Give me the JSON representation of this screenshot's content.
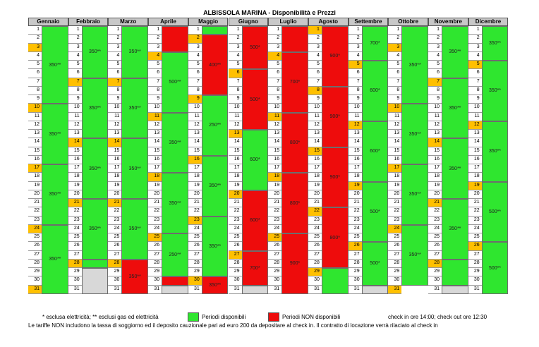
{
  "title": "ALBISSOLA MARINA - Disponibilità e Prezzi",
  "colors": {
    "available": "#2fe62f",
    "unavailable": "#ee0c0c",
    "weekend": "#ffc000",
    "header": "#c8c8c8",
    "empty": "#d8d8d8"
  },
  "months": [
    {
      "name": "Gennaio",
      "days": 31,
      "highlights": [
        3,
        10,
        17,
        24,
        31
      ],
      "blocks": [
        {
          "from": 1,
          "to": 9,
          "label": "350**",
          "status": "available"
        },
        {
          "from": 10,
          "to": 16,
          "label": "350**",
          "status": "available"
        },
        {
          "from": 17,
          "to": 23,
          "label": "350**",
          "status": "available"
        },
        {
          "from": 24,
          "to": 31,
          "label": "350**",
          "status": "available"
        }
      ]
    },
    {
      "name": "Febbraio",
      "days": 28,
      "highlights": [
        7,
        14,
        21,
        28
      ],
      "blocks": [
        {
          "from": 1,
          "to": 6,
          "label": "350**",
          "status": "available"
        },
        {
          "from": 7,
          "to": 13,
          "label": "350**",
          "status": "available"
        },
        {
          "from": 14,
          "to": 20,
          "label": "350**",
          "status": "available"
        },
        {
          "from": 21,
          "to": 27,
          "label": "350**",
          "status": "available"
        },
        {
          "from": 28,
          "to": 28,
          "label": "",
          "status": "available"
        }
      ]
    },
    {
      "name": "Marzo",
      "days": 31,
      "highlights": [
        7,
        14,
        21,
        28
      ],
      "blocks": [
        {
          "from": 1,
          "to": 6,
          "label": "350**",
          "status": "available"
        },
        {
          "from": 7,
          "to": 13,
          "label": "350**",
          "status": "available"
        },
        {
          "from": 14,
          "to": 20,
          "label": "350**",
          "status": "available"
        },
        {
          "from": 21,
          "to": 27,
          "label": "350**",
          "status": "available"
        },
        {
          "from": 28,
          "to": 31,
          "label": "350**",
          "status": "unavailable"
        }
      ]
    },
    {
      "name": "Aprile",
      "days": 30,
      "highlights": [
        4,
        11,
        18,
        25
      ],
      "blocks": [
        {
          "from": 1,
          "to": 3,
          "label": "",
          "status": "unavailable"
        },
        {
          "from": 4,
          "to": 10,
          "label": "500**",
          "status": "available"
        },
        {
          "from": 11,
          "to": 17,
          "label": "350**",
          "status": "available"
        },
        {
          "from": 18,
          "to": 24,
          "label": "350**",
          "status": "available"
        },
        {
          "from": 25,
          "to": 29,
          "label": "250**",
          "status": "available"
        },
        {
          "from": 30,
          "to": 30,
          "label": "",
          "status": "unavailable"
        }
      ]
    },
    {
      "name": "Maggio",
      "days": 31,
      "highlights": [
        2,
        9,
        16,
        23,
        30
      ],
      "blocks": [
        {
          "from": 1,
          "to": 1,
          "label": "",
          "status": "available"
        },
        {
          "from": 2,
          "to": 8,
          "label": "400**",
          "status": "unavailable"
        },
        {
          "from": 9,
          "to": 15,
          "label": "250**",
          "status": "available"
        },
        {
          "from": 16,
          "to": 22,
          "label": "350**",
          "status": "available"
        },
        {
          "from": 23,
          "to": 29,
          "label": "350**",
          "status": "available"
        },
        {
          "from": 30,
          "to": 31,
          "label": "350**",
          "status": "unavailable"
        }
      ]
    },
    {
      "name": "Giugno",
      "days": 30,
      "highlights": [
        6,
        13,
        20,
        27
      ],
      "blocks": [
        {
          "from": 1,
          "to": 5,
          "label": "500*",
          "status": "unavailable"
        },
        {
          "from": 6,
          "to": 12,
          "label": "500*",
          "status": "unavailable"
        },
        {
          "from": 13,
          "to": 19,
          "label": "600*",
          "status": "available"
        },
        {
          "from": 20,
          "to": 26,
          "label": "600*",
          "status": "unavailable"
        },
        {
          "from": 27,
          "to": 30,
          "label": "700*",
          "status": "unavailable"
        }
      ]
    },
    {
      "name": "Luglio",
      "days": 31,
      "highlights": [
        4,
        11,
        18,
        25
      ],
      "blocks": [
        {
          "from": 1,
          "to": 3,
          "label": "",
          "status": "unavailable"
        },
        {
          "from": 4,
          "to": 10,
          "label": "700*",
          "status": "unavailable"
        },
        {
          "from": 11,
          "to": 17,
          "label": "800*",
          "status": "unavailable"
        },
        {
          "from": 18,
          "to": 24,
          "label": "800*",
          "status": "unavailable"
        },
        {
          "from": 25,
          "to": 31,
          "label": "900*",
          "status": "unavailable"
        }
      ]
    },
    {
      "name": "Agosto",
      "days": 31,
      "highlights": [
        1,
        8,
        15,
        22,
        29
      ],
      "blocks": [
        {
          "from": 1,
          "to": 7,
          "label": "900*",
          "status": "unavailable"
        },
        {
          "from": 8,
          "to": 14,
          "label": "900*",
          "status": "unavailable"
        },
        {
          "from": 15,
          "to": 21,
          "label": "900*",
          "status": "unavailable"
        },
        {
          "from": 22,
          "to": 28,
          "label": "800*",
          "status": "unavailable"
        },
        {
          "from": 29,
          "to": 31,
          "label": "",
          "status": "available"
        }
      ]
    },
    {
      "name": "Settembre",
      "days": 30,
      "highlights": [
        5,
        12,
        19,
        26
      ],
      "blocks": [
        {
          "from": 1,
          "to": 4,
          "label": "700*",
          "status": "available"
        },
        {
          "from": 5,
          "to": 11,
          "label": "600*",
          "status": "available"
        },
        {
          "from": 12,
          "to": 18,
          "label": "600*",
          "status": "available"
        },
        {
          "from": 19,
          "to": 25,
          "label": "500*",
          "status": "available"
        },
        {
          "from": 26,
          "to": 30,
          "label": "500*",
          "status": "available"
        }
      ]
    },
    {
      "name": "Ottobre",
      "days": 31,
      "highlights": [
        3,
        10,
        17,
        24,
        31
      ],
      "blocks": [
        {
          "from": 1,
          "to": 9,
          "label": "350**",
          "status": "available"
        },
        {
          "from": 10,
          "to": 16,
          "label": "350**",
          "status": "available"
        },
        {
          "from": 17,
          "to": 23,
          "label": "350**",
          "status": "available"
        },
        {
          "from": 24,
          "to": 30,
          "label": "350**",
          "status": "available"
        }
      ]
    },
    {
      "name": "Novembre",
      "days": 30,
      "highlights": [
        7,
        14,
        21,
        28
      ],
      "blocks": [
        {
          "from": 1,
          "to": 6,
          "label": "350**",
          "status": "available"
        },
        {
          "from": 7,
          "to": 13,
          "label": "350**",
          "status": "available"
        },
        {
          "from": 14,
          "to": 20,
          "label": "350**",
          "status": "available"
        },
        {
          "from": 21,
          "to": 27,
          "label": "350**",
          "status": "available"
        },
        {
          "from": 28,
          "to": 30,
          "label": "",
          "status": "available"
        }
      ]
    },
    {
      "name": "Dicembre",
      "days": 31,
      "highlights": [
        5,
        12,
        19,
        26
      ],
      "blocks": [
        {
          "from": 1,
          "to": 4,
          "label": "350**",
          "status": "available"
        },
        {
          "from": 5,
          "to": 11,
          "label": "350**",
          "status": "available"
        },
        {
          "from": 12,
          "to": 18,
          "label": "350**",
          "status": "available"
        },
        {
          "from": 19,
          "to": 25,
          "label": "500**",
          "status": "available"
        },
        {
          "from": 26,
          "to": 31,
          "label": "500**",
          "status": "available"
        }
      ]
    }
  ],
  "legend": {
    "note": "* esclusa elettricità; ** esclusi gas ed elettricità",
    "available": "Periodi disponibili",
    "unavailable": "Periodi NON disponibili",
    "checkin": "check in ore 14:00; check out ore 12:30"
  },
  "footer": "Le tariffe NON includono la tassa di soggiorno ed il deposito cauzionale pari ad euro 200 da depositare al check in. Il contratto di locazione verrà rilaciato al check in"
}
